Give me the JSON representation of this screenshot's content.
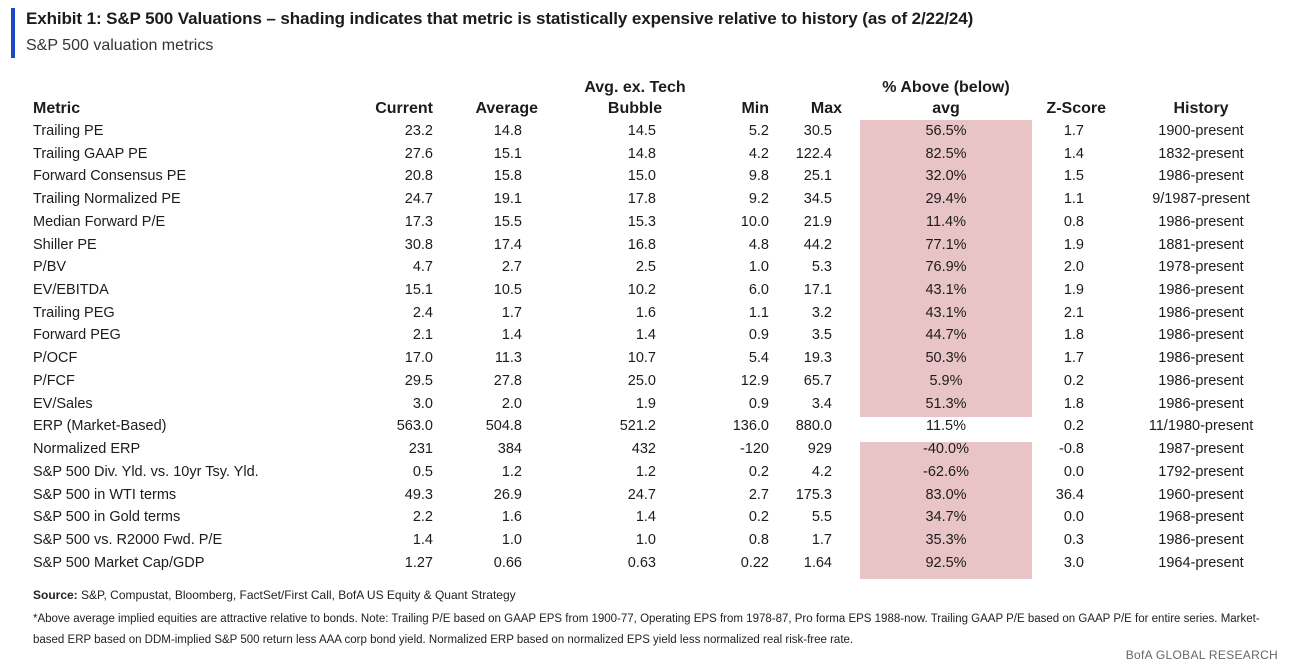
{
  "header": {
    "title": "Exhibit 1: S&P 500 Valuations – shading indicates that metric is statistically expensive relative to history (as of 2/22/24)",
    "subtitle": "S&P 500 valuation metrics",
    "accent_color": "#1a49c8"
  },
  "table": {
    "columns": {
      "metric": "Metric",
      "current": "Current",
      "average": "Average",
      "avgex_line1": "Avg. ex. Tech",
      "avgex_line2": "Bubble",
      "min": "Min",
      "max": "Max",
      "pct_line1": "% Above (below)",
      "pct_line2": "avg",
      "z": "Z-Score",
      "history": "History"
    },
    "shade_color": "#e9c4c6",
    "rows": [
      {
        "metric": "Trailing PE",
        "current": "23.2",
        "average": "14.8",
        "avgex": "14.5",
        "min": "5.2",
        "max": "30.5",
        "pct": "56.5%",
        "z": "1.7",
        "history": "1900-present",
        "shaded": true
      },
      {
        "metric": "Trailing GAAP PE",
        "current": "27.6",
        "average": "15.1",
        "avgex": "14.8",
        "min": "4.2",
        "max": "122.4",
        "pct": "82.5%",
        "z": "1.4",
        "history": "1832-present",
        "shaded": true
      },
      {
        "metric": "Forward Consensus PE",
        "current": "20.8",
        "average": "15.8",
        "avgex": "15.0",
        "min": "9.8",
        "max": "25.1",
        "pct": "32.0%",
        "z": "1.5",
        "history": "1986-present",
        "shaded": true
      },
      {
        "metric": "Trailing Normalized PE",
        "current": "24.7",
        "average": "19.1",
        "avgex": "17.8",
        "min": "9.2",
        "max": "34.5",
        "pct": "29.4%",
        "z": "1.1",
        "history": "9/1987-present",
        "shaded": true
      },
      {
        "metric": "Median Forward P/E",
        "current": "17.3",
        "average": "15.5",
        "avgex": "15.3",
        "min": "10.0",
        "max": "21.9",
        "pct": "11.4%",
        "z": "0.8",
        "history": "1986-present",
        "shaded": true
      },
      {
        "metric": "Shiller PE",
        "current": "30.8",
        "average": "17.4",
        "avgex": "16.8",
        "min": "4.8",
        "max": "44.2",
        "pct": "77.1%",
        "z": "1.9",
        "history": "1881-present",
        "shaded": true
      },
      {
        "metric": "P/BV",
        "current": "4.7",
        "average": "2.7",
        "avgex": "2.5",
        "min": "1.0",
        "max": "5.3",
        "pct": "76.9%",
        "z": "2.0",
        "history": "1978-present",
        "shaded": true
      },
      {
        "metric": "EV/EBITDA",
        "current": "15.1",
        "average": "10.5",
        "avgex": "10.2",
        "min": "6.0",
        "max": "17.1",
        "pct": "43.1%",
        "z": "1.9",
        "history": "1986-present",
        "shaded": true
      },
      {
        "metric": "Trailing PEG",
        "current": "2.4",
        "average": "1.7",
        "avgex": "1.6",
        "min": "1.1",
        "max": "3.2",
        "pct": "43.1%",
        "z": "2.1",
        "history": "1986-present",
        "shaded": true
      },
      {
        "metric": "Forward PEG",
        "current": "2.1",
        "average": "1.4",
        "avgex": "1.4",
        "min": "0.9",
        "max": "3.5",
        "pct": "44.7%",
        "z": "1.8",
        "history": "1986-present",
        "shaded": true
      },
      {
        "metric": "P/OCF",
        "current": "17.0",
        "average": "11.3",
        "avgex": "10.7",
        "min": "5.4",
        "max": "19.3",
        "pct": "50.3%",
        "z": "1.7",
        "history": "1986-present",
        "shaded": true
      },
      {
        "metric": "P/FCF",
        "current": "29.5",
        "average": "27.8",
        "avgex": "25.0",
        "min": "12.9",
        "max": "65.7",
        "pct": "5.9%",
        "z": "0.2",
        "history": "1986-present",
        "shaded": true
      },
      {
        "metric": "EV/Sales",
        "current": "3.0",
        "average": "2.0",
        "avgex": "1.9",
        "min": "0.9",
        "max": "3.4",
        "pct": "51.3%",
        "z": "1.8",
        "history": "1986-present",
        "shaded": true
      },
      {
        "metric": "ERP (Market-Based)",
        "current": "563.0",
        "average": "504.8",
        "avgex": "521.2",
        "min": "136.0",
        "max": "880.0",
        "pct": "11.5%",
        "z": "0.2",
        "history": "11/1980-present",
        "shaded": false
      },
      {
        "metric": "Normalized ERP",
        "current": "231",
        "average": "384",
        "avgex": "432",
        "min": "-120",
        "max": "929",
        "pct": "-40.0%",
        "z": "-0.8",
        "history": "1987-present",
        "shaded": true
      },
      {
        "metric": "S&P 500 Div. Yld. vs. 10yr Tsy. Yld.",
        "current": "0.5",
        "average": "1.2",
        "avgex": "1.2",
        "min": "0.2",
        "max": "4.2",
        "pct": "-62.6%",
        "z": "0.0",
        "history": "1792-present",
        "shaded": true
      },
      {
        "metric": "S&P 500 in WTI terms",
        "current": "49.3",
        "average": "26.9",
        "avgex": "24.7",
        "min": "2.7",
        "max": "175.3",
        "pct": "83.0%",
        "z": "36.4",
        "history": "1960-present",
        "shaded": true
      },
      {
        "metric": "S&P 500 in Gold terms",
        "current": "2.2",
        "average": "1.6",
        "avgex": "1.4",
        "min": "0.2",
        "max": "5.5",
        "pct": "34.7%",
        "z": "0.0",
        "history": "1968-present",
        "shaded": true
      },
      {
        "metric": "S&P 500 vs. R2000 Fwd. P/E",
        "current": "1.4",
        "average": "1.0",
        "avgex": "1.0",
        "min": "0.8",
        "max": "1.7",
        "pct": "35.3%",
        "z": "0.3",
        "history": "1986-present",
        "shaded": true
      },
      {
        "metric": "S&P 500 Market Cap/GDP",
        "current": "1.27",
        "average": "0.66",
        "avgex": "0.63",
        "min": "0.22",
        "max": "1.64",
        "pct": "92.5%",
        "z": "3.0",
        "history": "1964-present",
        "shaded": true
      }
    ]
  },
  "footer": {
    "source_label": "Source:",
    "source_text": " S&P, Compustat, Bloomberg, FactSet/First Call, BofA US Equity & Quant Strategy",
    "note": "*Above average implied equities are attractive relative to bonds.  Note: Trailing P/E based on GAAP EPS from 1900-77, Operating EPS from 1978-87, Pro forma EPS 1988-now. Trailing GAAP P/E based on GAAP P/E for entire series. Market-based ERP based on DDM-implied S&P 500 return less AAA corp bond yield. Normalized ERP based on normalized EPS yield less normalized real risk-free rate.",
    "brand": "BofA GLOBAL RESEARCH"
  }
}
